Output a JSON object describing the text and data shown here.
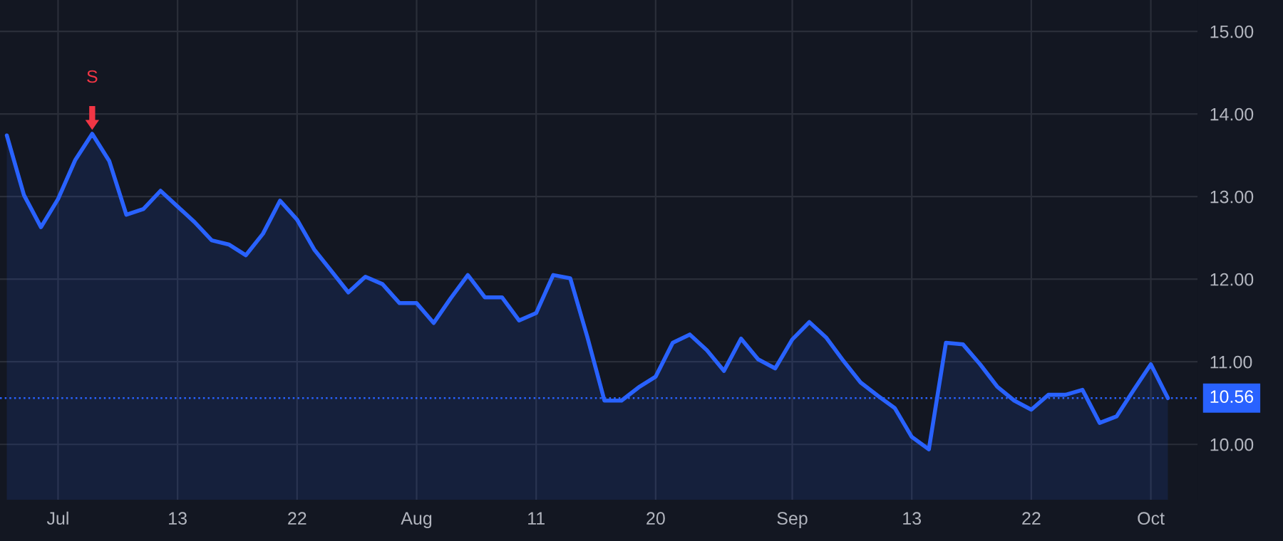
{
  "chart_data": {
    "type": "area",
    "categories": [
      null,
      null,
      null,
      "Jul",
      null,
      null,
      null,
      null,
      null,
      null,
      "13",
      null,
      null,
      null,
      null,
      null,
      null,
      "22",
      null,
      null,
      null,
      null,
      null,
      null,
      "Aug",
      null,
      null,
      null,
      null,
      null,
      null,
      "11",
      null,
      null,
      null,
      null,
      null,
      null,
      "20",
      null,
      null,
      null,
      null,
      null,
      null,
      null,
      "Sep",
      null,
      null,
      null,
      null,
      null,
      null,
      "13",
      null,
      null,
      null,
      null,
      null,
      null,
      "22",
      null,
      null,
      null,
      null,
      null,
      null,
      "Oct",
      null
    ],
    "series": [
      {
        "color": "#2962ff",
        "values": [
          13.74,
          13.02,
          12.63,
          12.97,
          13.44,
          13.76,
          13.43,
          12.78,
          12.85,
          13.07,
          12.88,
          12.69,
          12.47,
          12.42,
          12.29,
          12.55,
          12.95,
          12.72,
          12.36,
          12.1,
          11.84,
          12.03,
          11.94,
          11.71,
          11.71,
          11.47,
          11.77,
          12.05,
          11.78,
          11.78,
          11.5,
          11.59,
          12.05,
          12.01,
          11.3,
          10.53,
          10.53,
          10.69,
          10.82,
          11.23,
          11.33,
          11.14,
          10.89,
          11.28,
          11.03,
          10.92,
          11.27,
          11.48,
          11.29,
          11.01,
          10.75,
          10.59,
          10.44,
          10.09,
          9.94,
          11.23,
          11.21,
          10.97,
          10.7,
          10.53,
          10.42,
          10.6,
          10.6,
          10.66,
          10.26,
          10.34,
          10.66,
          10.97,
          10.56
        ]
      }
    ],
    "ylim": [
      9.33,
      15.38
    ],
    "yticks": [
      {
        "value": 10,
        "label": "10.00"
      },
      {
        "value": 11,
        "label": "11.00"
      },
      {
        "value": 12,
        "label": "12.00"
      },
      {
        "value": 13,
        "label": "13.00"
      },
      {
        "value": 14,
        "label": "14.00"
      },
      {
        "value": 15,
        "label": "15.00"
      }
    ],
    "ref_lines": [
      {
        "axis": "y",
        "value": 10.56,
        "label": "10.56",
        "color": "#2962ff",
        "line_style": "dotted"
      }
    ],
    "annotations": [
      {
        "text": "S",
        "y": 13.76
      }
    ],
    "grid": true
  }
}
